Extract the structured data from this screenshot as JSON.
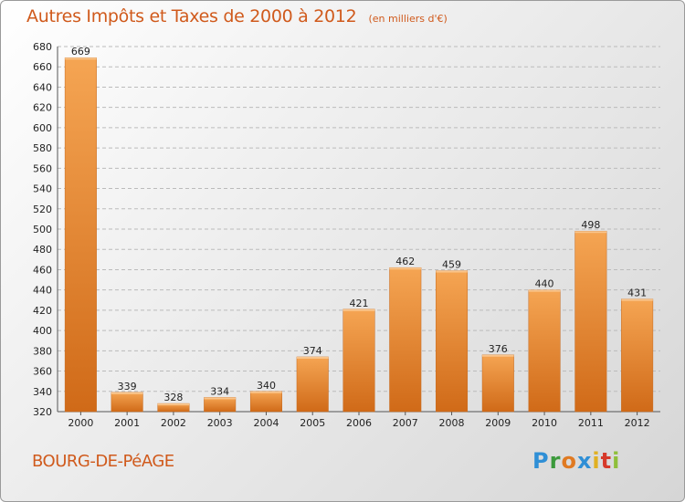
{
  "title": "Autres Impôts et Taxes de 2000 à 2012",
  "subtitle": "(en milliers d'€)",
  "city": "BOURG-DE-PéAGE",
  "logo": {
    "p": "P",
    "r": "r",
    "o": "o",
    "x": "x",
    "i1": "i",
    "t": "t",
    "i2": "i"
  },
  "colors": {
    "accent": "#d05a1c",
    "bar_top": "#f5a553",
    "bar_bottom": "#d06a18"
  },
  "chart_data": {
    "type": "bar",
    "categories": [
      "2000",
      "2001",
      "2002",
      "2003",
      "2004",
      "2005",
      "2006",
      "2007",
      "2008",
      "2009",
      "2010",
      "2011",
      "2012"
    ],
    "values": [
      669,
      339,
      328,
      334,
      340,
      374,
      421,
      462,
      459,
      376,
      440,
      498,
      431
    ],
    "value_labels": [
      "669",
      "339",
      "328",
      "334",
      "340",
      "374",
      "421",
      "462",
      "459",
      "376",
      "440",
      "498",
      "431"
    ],
    "title": "Autres Impôts et Taxes de 2000 à 2012",
    "xlabel": "",
    "ylabel": "",
    "ylim": [
      320,
      680
    ],
    "yticks": [
      320,
      340,
      360,
      380,
      400,
      420,
      440,
      460,
      480,
      500,
      520,
      540,
      560,
      580,
      600,
      620,
      640,
      660,
      680
    ],
    "grid": true,
    "legend": "none"
  }
}
